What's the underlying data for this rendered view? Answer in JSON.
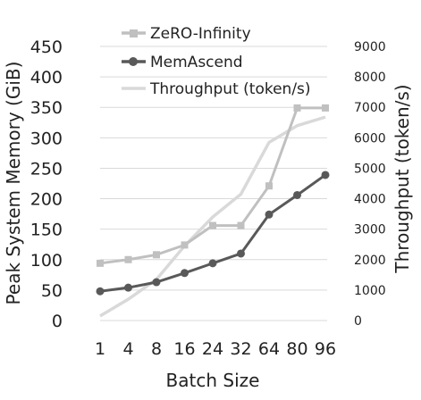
{
  "chart_data": {
    "type": "line",
    "xlabel": "Batch Size",
    "ylabel_left": "Peak System Memory (GiB)",
    "ylabel_right": "Throughput (token/s)",
    "categories": [
      "1",
      "4",
      "8",
      "16",
      "24",
      "32",
      "64",
      "80",
      "96"
    ],
    "ylim_left": [
      0,
      450
    ],
    "yticks_left": [
      "0",
      "50",
      "100",
      "150",
      "200",
      "250",
      "300",
      "350",
      "400",
      "450"
    ],
    "ylim_right": [
      0,
      9000
    ],
    "yticks_right": [
      "0",
      "1000",
      "2000",
      "3000",
      "4000",
      "5000",
      "6000",
      "7000",
      "8000",
      "9000"
    ],
    "grid": "horizontal",
    "legend_position": "top-center",
    "series": [
      {
        "name": "ZeRO-Infinity",
        "axis": "left",
        "marker": "square",
        "color": "#c0c0c0",
        "values": [
          94,
          100,
          108,
          124,
          156,
          156,
          221,
          349,
          349
        ]
      },
      {
        "name": "MemAscend",
        "axis": "left",
        "marker": "circle",
        "color": "#595959",
        "values": [
          48,
          54,
          63,
          78,
          94,
          110,
          174,
          206,
          239
        ]
      },
      {
        "name": "Throughput (token/s)",
        "axis": "right",
        "marker": "none",
        "color": "#d9d9d9",
        "values": [
          150,
          700,
          1350,
          2450,
          3400,
          4150,
          5850,
          6400,
          6680
        ]
      }
    ]
  }
}
